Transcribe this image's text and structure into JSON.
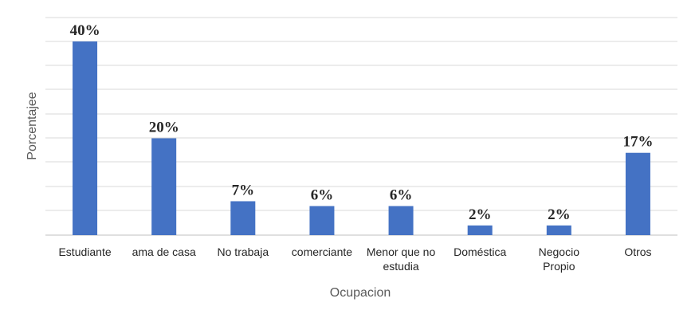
{
  "chart_data": {
    "type": "bar",
    "title": "",
    "xlabel": "Ocupacion",
    "ylabel": "Porcentajee",
    "categories": [
      [
        "Estudiante"
      ],
      [
        "ama de casa"
      ],
      [
        "No trabaja"
      ],
      [
        "comerciante"
      ],
      [
        "Menor que no",
        "estudia"
      ],
      [
        "Doméstica"
      ],
      [
        "Negocio",
        "Propio"
      ],
      [
        "Otros"
      ]
    ],
    "values": [
      40,
      20,
      7,
      6,
      6,
      2,
      2,
      17
    ],
    "data_labels": [
      "40%",
      "20%",
      "7%",
      "6%",
      "6%",
      "2%",
      "2%",
      "17%"
    ],
    "unit": "%",
    "ylim": [
      0,
      40
    ],
    "grid": true,
    "legend": "none",
    "colors": {
      "bar": "#4472C4",
      "grid": "#D9D9D9",
      "axis": "#BFBFBF"
    }
  }
}
